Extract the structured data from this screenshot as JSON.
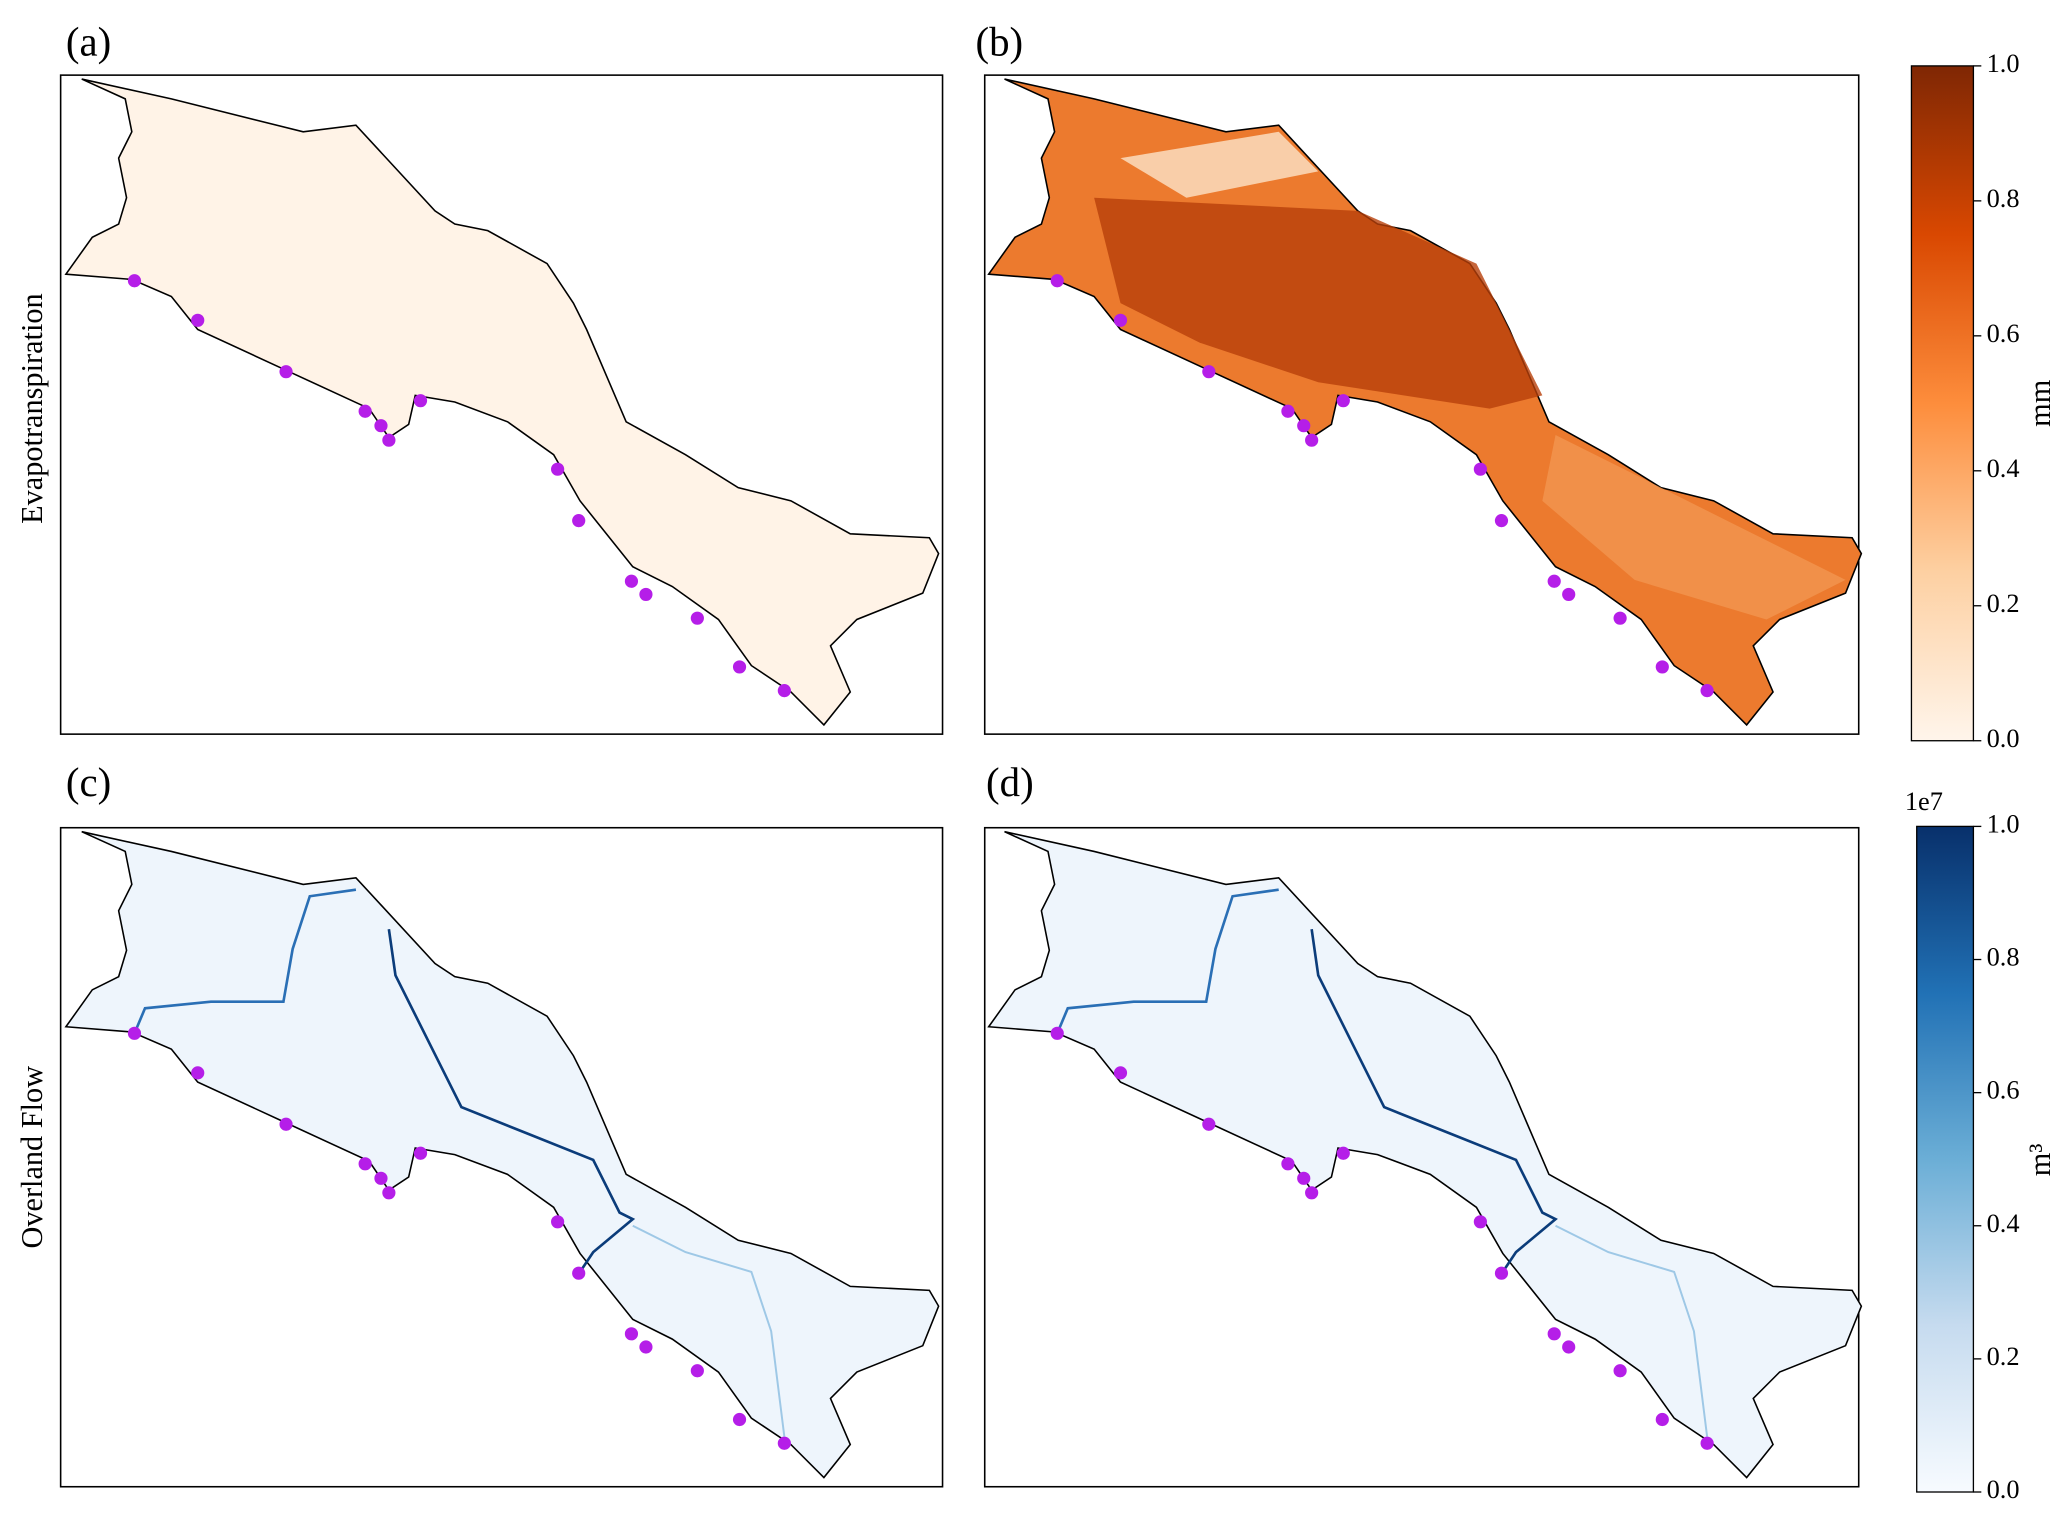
{
  "panels": [
    {
      "label": "(a)"
    },
    {
      "label": "(b)"
    },
    {
      "label": "(c)"
    },
    {
      "label": "(d)"
    }
  ],
  "row_labels": [
    "Evapotranspiration",
    "Overland Flow"
  ],
  "colorbars": [
    {
      "label": "mm",
      "lim": [
        0,
        1
      ],
      "ticks": [
        {
          "value": 0,
          "label": "0.0"
        },
        {
          "value": 0.2,
          "label": "0.2"
        },
        {
          "value": 0.4,
          "label": "0.4"
        },
        {
          "value": 0.6,
          "label": "0.6"
        },
        {
          "value": 0.8,
          "label": "0.8"
        },
        {
          "value": 1,
          "label": "1.0"
        }
      ]
    },
    {
      "label": "m³",
      "offset_label": "1e7",
      "lim": [
        0,
        1
      ],
      "ticks": [
        {
          "value": 0,
          "label": "0.0"
        },
        {
          "value": 0.2,
          "label": "0.2"
        },
        {
          "value": 0.4,
          "label": "0.4"
        },
        {
          "value": 0.6,
          "label": "0.6"
        },
        {
          "value": 0.8,
          "label": "0.8"
        },
        {
          "value": 1,
          "label": "1.0"
        }
      ]
    }
  ]
}
